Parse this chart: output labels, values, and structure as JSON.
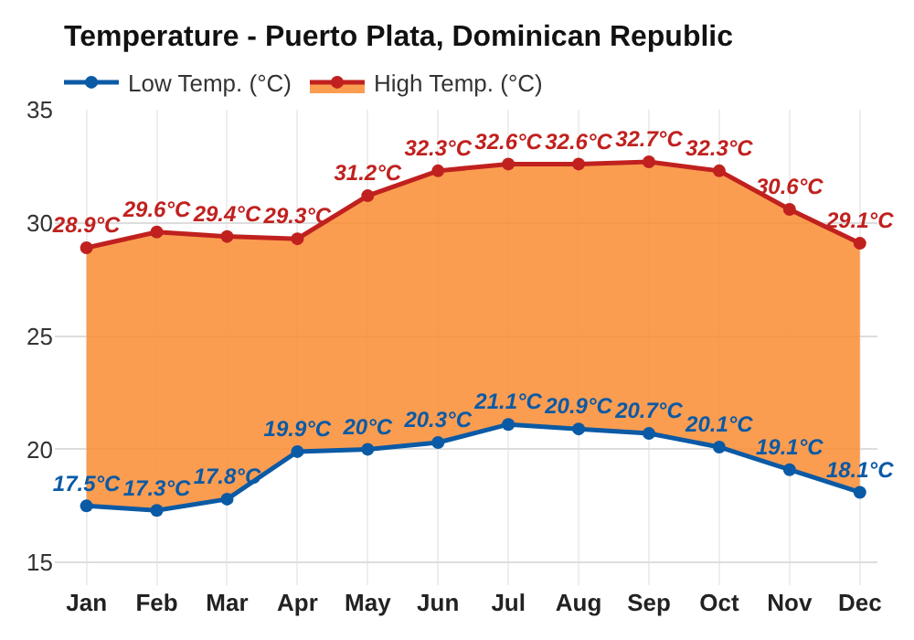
{
  "chart_data": {
    "type": "line",
    "title": "Temperature - Puerto Plata, Dominican Republic",
    "categories": [
      "Jan",
      "Feb",
      "Mar",
      "Apr",
      "May",
      "Jun",
      "Jul",
      "Aug",
      "Sep",
      "Oct",
      "Nov",
      "Dec"
    ],
    "series": [
      {
        "name": "Low Temp. (°C)",
        "color": "#0b5aa5",
        "values": [
          17.5,
          17.3,
          17.8,
          19.9,
          20,
          20.3,
          21.1,
          20.9,
          20.7,
          20.1,
          19.1,
          18.1
        ],
        "value_labels": [
          "17.5°C",
          "17.3°C",
          "17.8°C",
          "19.9°C",
          "20°C",
          "20.3°C",
          "21.1°C",
          "20.9°C",
          "20.7°C",
          "20.1°C",
          "19.1°C",
          "18.1°C"
        ]
      },
      {
        "name": "High Temp. (°C)",
        "type": "area",
        "color": "#c0211f",
        "values": [
          28.9,
          29.6,
          29.4,
          29.3,
          31.2,
          32.3,
          32.6,
          32.6,
          32.7,
          32.3,
          30.6,
          29.1
        ],
        "value_labels": [
          "28.9°C",
          "29.6°C",
          "29.4°C",
          "29.3°C",
          "31.2°C",
          "32.3°C",
          "32.6°C",
          "32.6°C",
          "32.7°C",
          "32.3°C",
          "30.6°C",
          "29.1°C"
        ]
      }
    ],
    "ylim": [
      14,
      35
    ],
    "yticks": [
      15,
      20,
      25,
      30,
      35
    ],
    "grid": true,
    "legend": "top left",
    "marker": "circle",
    "line_style": "solid"
  }
}
